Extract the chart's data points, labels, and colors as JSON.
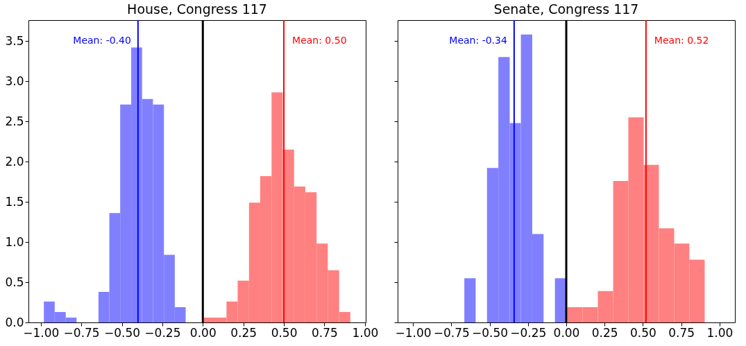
{
  "chart_data": [
    {
      "type": "histogram",
      "title": "House, Congress 117",
      "xlim": [
        -1.076,
        1.005
      ],
      "ylim": [
        0,
        3.76
      ],
      "xticks": [
        {
          "value": -1,
          "label": "−1.00"
        },
        {
          "value": -0.75,
          "label": "−0.75"
        },
        {
          "value": -0.5,
          "label": "−0.50"
        },
        {
          "value": -0.25,
          "label": "−0.25"
        },
        {
          "value": 0,
          "label": "0.00"
        },
        {
          "value": 0.25,
          "label": "0.25"
        },
        {
          "value": 0.5,
          "label": "0.50"
        },
        {
          "value": 0.75,
          "label": "0.75"
        },
        {
          "value": 1,
          "label": "1.00"
        }
      ],
      "yticks": [
        {
          "value": 0,
          "label": "0.0"
        },
        {
          "value": 0.5,
          "label": "0.5"
        },
        {
          "value": 1,
          "label": "1.0"
        },
        {
          "value": 1.5,
          "label": "1.5"
        },
        {
          "value": 2,
          "label": "2.0"
        },
        {
          "value": 2.5,
          "label": "2.5"
        },
        {
          "value": 3,
          "label": "3.0"
        },
        {
          "value": 3.5,
          "label": "3.5"
        }
      ],
      "grid": false,
      "legend": false,
      "bins": [
        -0.981,
        -0.914,
        -0.846,
        -0.779,
        -0.644,
        -0.577,
        -0.51,
        -0.442,
        -0.375,
        -0.308,
        -0.24,
        -0.173,
        -0.106,
        0.007,
        0.076,
        0.146,
        0.215,
        0.285,
        0.354,
        0.424,
        0.493,
        0.563,
        0.632,
        0.702,
        0.771,
        0.841,
        0.91
      ],
      "series": [
        {
          "color": "#8080ff",
          "values": [
            0.26,
            0.13,
            0.06,
            0,
            0.38,
            1.36,
            2.71,
            3.42,
            2.78,
            2.71,
            0.84,
            0.19,
            null,
            null,
            null,
            null,
            null,
            null,
            null,
            null,
            null,
            null,
            null,
            null,
            null,
            null
          ]
        },
        {
          "color": "#ff8080",
          "values": [
            null,
            null,
            null,
            null,
            null,
            null,
            null,
            null,
            null,
            null,
            null,
            null,
            null,
            0.06,
            0.06,
            0.26,
            0.52,
            1.49,
            1.82,
            2.86,
            2.15,
            1.69,
            1.62,
            0.98,
            0.65,
            0.13
          ]
        }
      ],
      "ref_lines": [
        {
          "axis": "x",
          "value": 0,
          "color": "#000000"
        },
        {
          "axis": "x",
          "value": -0.4,
          "label": "Mean: -0.40",
          "color": "#0000ff"
        },
        {
          "axis": "x",
          "value": 0.5,
          "label": "Mean: 0.50",
          "color": "#ff0000"
        }
      ]
    },
    {
      "type": "histogram",
      "title": "Senate, Congress 117",
      "xlim": [
        -1.1,
        1.1
      ],
      "ylim": [
        0,
        3.76
      ],
      "tick_labels": "x",
      "xticks": [
        {
          "value": -1,
          "label": "−1.00"
        },
        {
          "value": -0.75,
          "label": "−0.75"
        },
        {
          "value": -0.5,
          "label": "−0.50"
        },
        {
          "value": -0.25,
          "label": "−0.25"
        },
        {
          "value": 0,
          "label": "0.00"
        },
        {
          "value": 0.25,
          "label": "0.25"
        },
        {
          "value": 0.5,
          "label": "0.50"
        },
        {
          "value": 0.75,
          "label": "0.75"
        },
        {
          "value": 1,
          "label": "1.00"
        }
      ],
      "yticks": [
        0,
        0.5,
        1,
        1.5,
        2,
        2.5,
        3,
        3.5
      ],
      "grid": false,
      "legend": false,
      "bins": [
        -0.665,
        -0.591,
        -0.517,
        -0.443,
        -0.369,
        -0.296,
        -0.222,
        -0.148,
        -0.074,
        0.0,
        0.007,
        0.107,
        0.206,
        0.306,
        0.405,
        0.505,
        0.604,
        0.704,
        0.803,
        0.903
      ],
      "series": [
        {
          "color": "#8080ff",
          "values": [
            0.55,
            0,
            1.92,
            3.3,
            2.48,
            3.58,
            1.1,
            0,
            0.55,
            null,
            null,
            null,
            null,
            null,
            null,
            null,
            null,
            null,
            null
          ]
        },
        {
          "color": "#ff8080",
          "values": [
            null,
            null,
            null,
            null,
            null,
            null,
            null,
            null,
            null,
            null,
            0.19,
            0.19,
            0.39,
            1.76,
            2.55,
            1.96,
            1.17,
            0.98,
            0.78
          ]
        }
      ],
      "ref_lines": [
        {
          "axis": "x",
          "value": 0,
          "color": "#000000"
        },
        {
          "axis": "x",
          "value": -0.34,
          "label": "Mean: -0.34",
          "color": "#0000ff"
        },
        {
          "axis": "x",
          "value": 0.52,
          "label": "Mean: 0.52",
          "color": "#ff0000"
        }
      ]
    }
  ]
}
